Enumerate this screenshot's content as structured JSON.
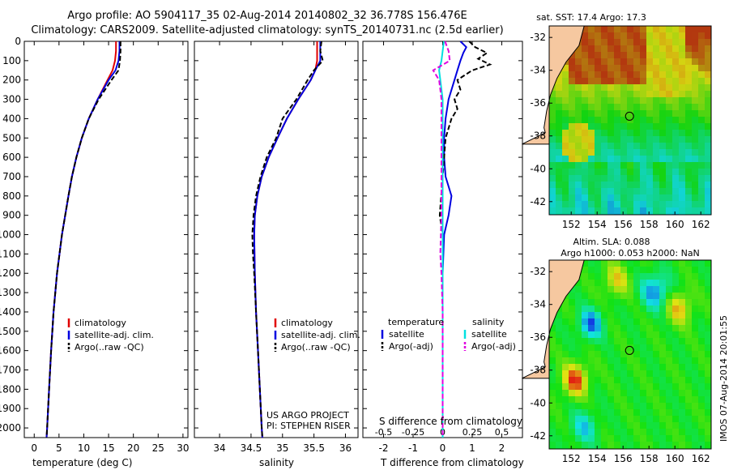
{
  "title_line1": "Argo profile: AO 5904117_35 02-Aug-2014 20140802_32 36.778S 156.476E",
  "title_line2": "Climatology: CARS2009. Satellite-adjusted climatology: synTS_20140731.nc (2.5d earlier)",
  "colors": {
    "climatology": "#e00000",
    "satellite": "#0000e0",
    "argo": "#000000",
    "sat_salinity": "#00e0e0",
    "argo_salinity": "#e000e0",
    "land": "#f6c8a0"
  },
  "depth_axis": {
    "ticks": [
      0,
      100,
      200,
      300,
      400,
      500,
      600,
      700,
      800,
      900,
      1000,
      1100,
      1200,
      1300,
      1400,
      1500,
      1600,
      1700,
      1800,
      1900,
      2000
    ]
  },
  "credit": {
    "line1": "US ARGO PROJECT",
    "line2": "PI: STEPHEN RISER"
  },
  "side_text": "IMOS 07-Aug-2014 20:01:55",
  "chart_data": [
    {
      "type": "line",
      "xlabel": "temperature (deg C)",
      "ylabel": "",
      "xlim": [
        -2,
        31
      ],
      "ylim": [
        2050,
        0
      ],
      "xticks": [
        0,
        5,
        10,
        15,
        20,
        25,
        30
      ],
      "legend": [
        "climatology",
        "satellite-adj. clim.",
        "Argo(..raw -QC)"
      ],
      "series": [
        {
          "name": "climatology",
          "depth": [
            0,
            50,
            100,
            150,
            200,
            300,
            400,
            500,
            600,
            700,
            800,
            1000,
            1200,
            1400,
            1600,
            1800,
            2000,
            2050
          ],
          "values": [
            16.5,
            16.5,
            16.3,
            15.8,
            14.8,
            12.8,
            11.0,
            9.6,
            8.5,
            7.6,
            6.9,
            5.6,
            4.6,
            3.9,
            3.4,
            3.0,
            2.6,
            2.5
          ]
        },
        {
          "name": "satellite-adj. clim.",
          "depth": [
            0,
            50,
            100,
            150,
            200,
            300,
            400,
            500,
            600,
            700,
            800,
            1000,
            1200,
            1400,
            1600,
            1800,
            2000,
            2050
          ],
          "values": [
            17.2,
            17.2,
            17.0,
            16.4,
            15.0,
            12.8,
            11.0,
            9.6,
            8.5,
            7.6,
            6.9,
            5.6,
            4.6,
            3.9,
            3.4,
            3.0,
            2.6,
            2.5
          ]
        },
        {
          "name": "Argo(..raw -QC)",
          "depth": [
            0,
            50,
            100,
            150,
            200,
            300,
            400,
            500,
            600,
            700,
            800,
            1000,
            1200,
            1400,
            1600,
            1800,
            2000,
            2050
          ],
          "values": [
            17.4,
            17.4,
            17.3,
            17.0,
            15.6,
            13.0,
            11.0,
            9.6,
            8.5,
            7.6,
            6.9,
            5.6,
            4.6,
            3.9,
            3.4,
            3.0,
            2.6,
            2.5
          ]
        }
      ]
    },
    {
      "type": "line",
      "xlabel": "salinity",
      "ylabel": "",
      "xlim": [
        33.6,
        36.2
      ],
      "ylim": [
        2050,
        0
      ],
      "xticks": [
        34,
        34.5,
        35,
        35.5,
        36
      ],
      "legend": [
        "climatology",
        "satellite-adj. clim.",
        "Argo(..raw -QC)"
      ],
      "series": [
        {
          "name": "climatology",
          "depth": [
            0,
            50,
            100,
            150,
            200,
            300,
            400,
            500,
            600,
            700,
            800,
            900,
            1000,
            1200,
            1400,
            1600,
            1800,
            2000,
            2050
          ],
          "values": [
            35.55,
            35.55,
            35.55,
            35.52,
            35.45,
            35.25,
            35.07,
            34.92,
            34.78,
            34.67,
            34.6,
            34.56,
            34.55,
            34.56,
            34.58,
            34.61,
            34.64,
            34.67,
            34.68
          ]
        },
        {
          "name": "satellite-adj. clim.",
          "depth": [
            0,
            50,
            100,
            150,
            200,
            300,
            400,
            500,
            600,
            700,
            800,
            900,
            1000,
            1200,
            1400,
            1600,
            1800,
            2000,
            2050
          ],
          "values": [
            35.6,
            35.6,
            35.6,
            35.52,
            35.45,
            35.25,
            35.07,
            34.92,
            34.78,
            34.67,
            34.6,
            34.56,
            34.55,
            34.56,
            34.58,
            34.61,
            34.64,
            34.67,
            34.68
          ]
        },
        {
          "name": "Argo(..raw -QC)",
          "depth": [
            0,
            50,
            100,
            150,
            200,
            300,
            400,
            500,
            600,
            700,
            800,
            900,
            1000,
            1100,
            1200,
            1400,
            1600,
            1800,
            2000,
            2050
          ],
          "values": [
            35.62,
            35.6,
            35.64,
            35.5,
            35.4,
            35.22,
            35.0,
            34.9,
            34.75,
            34.65,
            34.58,
            34.54,
            34.52,
            34.53,
            34.55,
            34.58,
            34.61,
            34.64,
            34.67,
            34.68
          ]
        }
      ]
    },
    {
      "type": "line",
      "xlabel": "T difference from climatology",
      "x2label": "S difference from climatology",
      "ylabel": "",
      "xlim": [
        -2.7,
        2.7
      ],
      "ylim": [
        2050,
        0
      ],
      "xticks": [
        -2,
        -1,
        0,
        1,
        2
      ],
      "s_ticks": [
        -0.5,
        -0.25,
        0,
        0.25,
        0.5
      ],
      "legend_titles": [
        "temperature",
        "salinity"
      ],
      "legend": [
        "satellite",
        "Argo(-adj)",
        "satellite",
        "Argo(-adj)"
      ],
      "series": [
        {
          "name": "temperature satellite",
          "depth": [
            0,
            30,
            60,
            100,
            150,
            200,
            300,
            400,
            500,
            600,
            700,
            800,
            900,
            1000,
            1200,
            1400,
            1600,
            1800,
            2000,
            2050
          ],
          "values": [
            0.6,
            0.8,
            0.7,
            0.6,
            0.5,
            0.4,
            0.2,
            0.1,
            0.05,
            0.05,
            0.1,
            0.3,
            0.2,
            0.05,
            0.0,
            0.0,
            0.0,
            0.0,
            0.0,
            0.0
          ]
        },
        {
          "name": "temperature Argo(-adj)",
          "depth": [
            0,
            30,
            60,
            90,
            120,
            150,
            180,
            200,
            250,
            300,
            350,
            400,
            450,
            500,
            600,
            700,
            800,
            900,
            1000,
            1200,
            1400,
            1600,
            1800,
            2000,
            2050
          ],
          "values": [
            0.9,
            1.1,
            1.5,
            1.2,
            1.6,
            1.0,
            0.7,
            0.5,
            0.6,
            0.4,
            0.5,
            0.3,
            0.2,
            0.1,
            0.05,
            0.0,
            -0.05,
            -0.1,
            0.0,
            0.0,
            0.0,
            0.0,
            0.0,
            0.0,
            0.0
          ]
        },
        {
          "name": "salinity satellite",
          "depth": [
            0,
            50,
            100,
            150,
            200,
            300,
            400,
            600,
            800,
            1000,
            1200,
            1400,
            1600,
            1800,
            2000,
            2050
          ],
          "values": [
            0.01,
            0.0,
            -0.01,
            -0.03,
            -0.02,
            0.0,
            0.0,
            0.0,
            0.0,
            0.0,
            0.0,
            0.0,
            0.0,
            0.0,
            0.0,
            0.0
          ]
        },
        {
          "name": "salinity Argo(-adj)",
          "depth": [
            0,
            50,
            100,
            150,
            200,
            250,
            300,
            500,
            700,
            900,
            1100,
            1200,
            1400,
            1600,
            1800,
            2000,
            2050
          ],
          "values": [
            0.02,
            0.05,
            0.06,
            -0.08,
            -0.03,
            -0.02,
            -0.01,
            -0.01,
            -0.01,
            -0.01,
            -0.02,
            -0.01,
            0.0,
            0.0,
            0.0,
            0.0,
            0.0
          ]
        }
      ]
    },
    {
      "type": "heatmap",
      "title": "sat. SST: 17.4 Argo: 17.3",
      "xlim": [
        150.3,
        162.8
      ],
      "ylim": [
        -42.8,
        -31.3
      ],
      "xticks": [
        152,
        154,
        156,
        158,
        160,
        162
      ],
      "yticks": [
        -32,
        -34,
        -36,
        -38,
        -40,
        -42
      ],
      "marker": {
        "lon": 156.5,
        "lat": -36.8
      }
    },
    {
      "type": "heatmap",
      "title": "Altim. SLA: 0.088",
      "subtitle": "Argo h1000: 0.053 h2000: NaN",
      "xlim": [
        150.3,
        162.8
      ],
      "ylim": [
        -42.8,
        -31.3
      ],
      "xticks": [
        152,
        154,
        156,
        158,
        160,
        162
      ],
      "yticks": [
        -32,
        -34,
        -36,
        -38,
        -40,
        -42
      ],
      "marker": {
        "lon": 156.5,
        "lat": -36.8
      }
    }
  ]
}
